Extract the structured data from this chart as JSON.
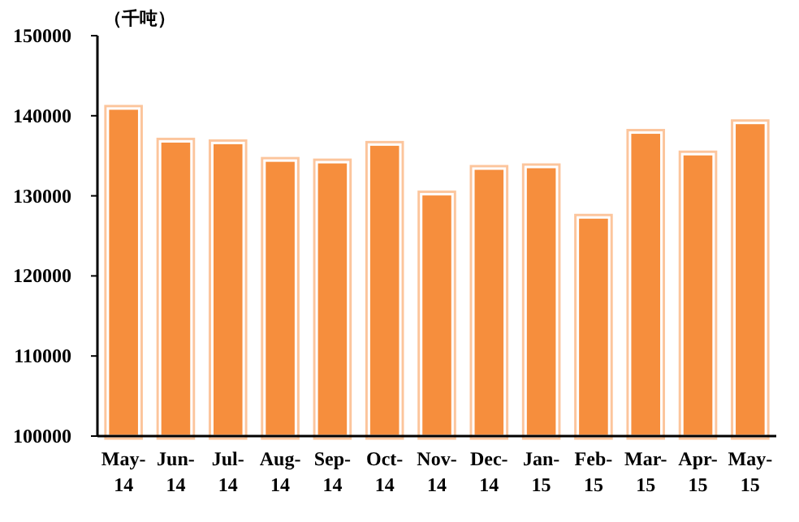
{
  "chart_data": {
    "type": "bar",
    "ylabel": "（千吨）",
    "categories": [
      "May-14",
      "Jun-14",
      "Jul-14",
      "Aug-14",
      "Sep-14",
      "Oct-14",
      "Nov-14",
      "Dec-14",
      "Jan-15",
      "Feb-15",
      "Mar-15",
      "Apr-15",
      "May-15"
    ],
    "values": [
      140900,
      136800,
      136600,
      134400,
      134200,
      136400,
      130200,
      133400,
      133600,
      127300,
      137900,
      135200,
      139100
    ],
    "color": "#f68e3e",
    "ylim": [
      100000,
      150000
    ],
    "yticks": [
      100000,
      110000,
      120000,
      130000,
      140000,
      150000
    ],
    "grid": false
  }
}
